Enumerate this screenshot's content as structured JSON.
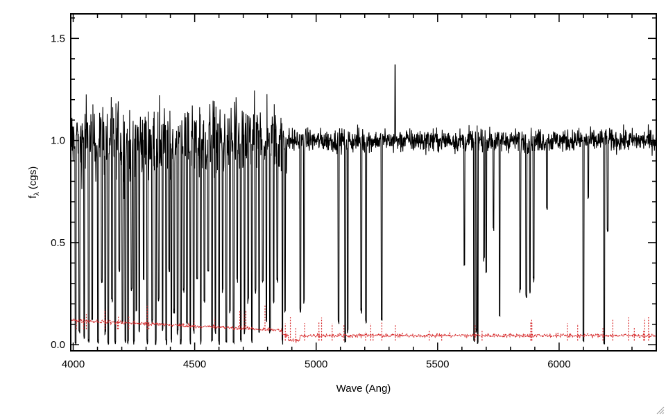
{
  "chart_data": {
    "type": "line",
    "title": "",
    "xlabel": "Wave (Ang)",
    "ylabel_main": "f",
    "ylabel_subscript": "λ",
    "ylabel_unit": "(cgs)",
    "xlim": [
      3990,
      6400
    ],
    "ylim": [
      -0.03,
      1.62
    ],
    "x_ticks": [
      4000,
      4500,
      5000,
      5500,
      6000
    ],
    "x_tick_labels": [
      "4000",
      "4500",
      "5000",
      "5500",
      "6000"
    ],
    "y_ticks": [
      0.0,
      0.5,
      1.0,
      1.5
    ],
    "y_tick_labels": [
      "0.0",
      "0.5",
      "1.0",
      "1.5"
    ],
    "grid": false,
    "legend": "none",
    "series": [
      {
        "color": "#000000",
        "style": "solid",
        "continuum": 1.0,
        "noise_by_region": [
          {
            "x_from": 3990,
            "x_to": 4880,
            "noise": 0.13
          },
          {
            "x_from": 4880,
            "x_to": 6400,
            "noise": 0.04
          }
        ],
        "absorption_lines": [
          [
            4010,
            0.0
          ],
          [
            4025,
            0.05
          ],
          [
            4045,
            0.02
          ],
          [
            4064,
            0.0
          ],
          [
            4078,
            0.1
          ],
          [
            4102,
            0.0
          ],
          [
            4118,
            0.3
          ],
          [
            4132,
            0.05
          ],
          [
            4144,
            0.0
          ],
          [
            4160,
            0.2
          ],
          [
            4173,
            0.0
          ],
          [
            4190,
            0.35
          ],
          [
            4203,
            0.1
          ],
          [
            4215,
            0.0
          ],
          [
            4226,
            0.0
          ],
          [
            4240,
            0.25
          ],
          [
            4250,
            0.0
          ],
          [
            4260,
            0.15
          ],
          [
            4272,
            0.05
          ],
          [
            4290,
            0.3
          ],
          [
            4305,
            0.0
          ],
          [
            4325,
            0.1
          ],
          [
            4340,
            0.0
          ],
          [
            4352,
            0.2
          ],
          [
            4368,
            0.05
          ],
          [
            4383,
            0.0
          ],
          [
            4395,
            0.35
          ],
          [
            4404,
            0.0
          ],
          [
            4415,
            0.15
          ],
          [
            4430,
            0.05
          ],
          [
            4443,
            0.0
          ],
          [
            4455,
            0.25
          ],
          [
            4468,
            0.1
          ],
          [
            4482,
            0.0
          ],
          [
            4496,
            0.05
          ],
          [
            4510,
            0.3
          ],
          [
            4525,
            0.0
          ],
          [
            4540,
            0.2
          ],
          [
            4556,
            0.35
          ],
          [
            4571,
            0.0
          ],
          [
            4585,
            0.05
          ],
          [
            4600,
            0.0
          ],
          [
            4615,
            0.25
          ],
          [
            4630,
            0.0
          ],
          [
            4645,
            0.15
          ],
          [
            4660,
            0.0
          ],
          [
            4675,
            0.3
          ],
          [
            4690,
            0.0
          ],
          [
            4705,
            0.05
          ],
          [
            4720,
            0.2
          ],
          [
            4735,
            0.0
          ],
          [
            4750,
            0.25
          ],
          [
            4765,
            0.05
          ],
          [
            4780,
            0.3
          ],
          [
            4795,
            0.1
          ],
          [
            4810,
            0.05
          ],
          [
            4825,
            0.2
          ],
          [
            4840,
            0.3
          ],
          [
            4861,
            0.0
          ],
          [
            4872,
            0.15
          ],
          [
            4935,
            0.15
          ],
          [
            4950,
            0.2
          ],
          [
            5092,
            0.1
          ],
          [
            5120,
            0.0
          ],
          [
            5130,
            0.05
          ],
          [
            5186,
            0.15
          ],
          [
            5205,
            0.1
          ],
          [
            5270,
            0.1
          ],
          [
            5610,
            0.38
          ],
          [
            5650,
            0.0
          ],
          [
            5660,
            0.05
          ],
          [
            5665,
            0.0
          ],
          [
            5691,
            0.4
          ],
          [
            5700,
            0.35
          ],
          [
            5730,
            0.55
          ],
          [
            5755,
            0.12
          ],
          [
            5840,
            0.25
          ],
          [
            5865,
            0.22
          ],
          [
            5880,
            0.25
          ],
          [
            5895,
            0.3
          ],
          [
            5950,
            0.65
          ],
          [
            6100,
            0.0
          ],
          [
            6120,
            0.7
          ],
          [
            6185,
            0.0
          ],
          [
            6200,
            0.55
          ]
        ],
        "spikes": [
          [
            5325,
            1.37
          ]
        ]
      },
      {
        "color": "#d62728",
        "style": "dotted",
        "start_value": 0.12,
        "end_value": 0.04,
        "dip": [
          4910,
          0.02
        ],
        "spike_count": 45
      }
    ]
  },
  "ui": {
    "resize_grip_icon": "resize-grip-icon"
  }
}
